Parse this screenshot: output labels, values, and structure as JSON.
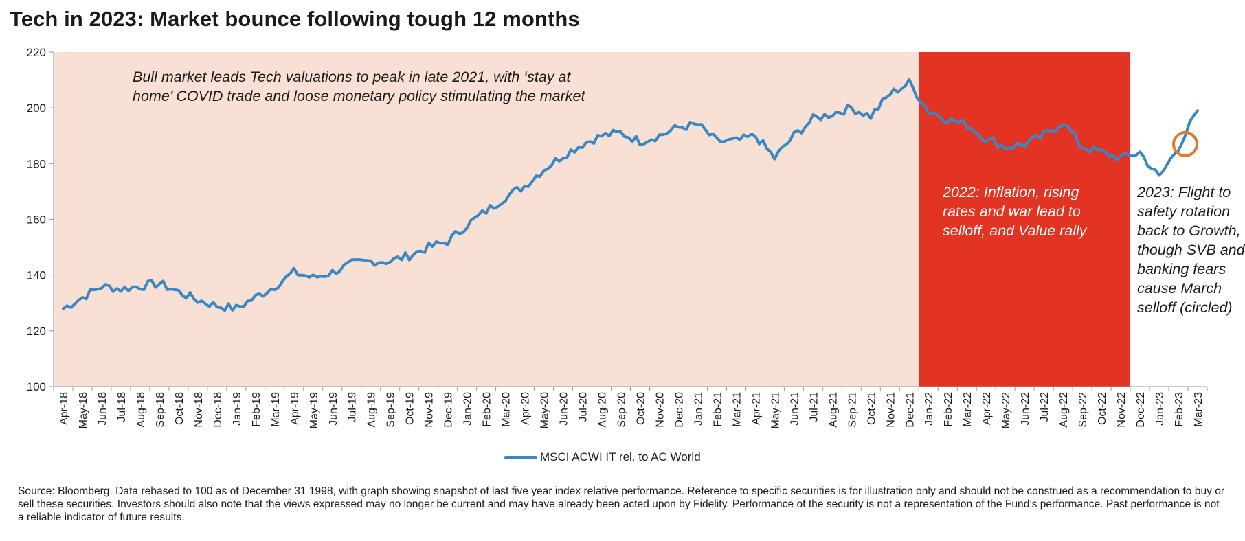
{
  "title": "Tech in 2023: Market bounce following tough 12 months",
  "colors": {
    "line": "#3a87c3",
    "bull_region": "#f8e1d4",
    "selloff_region": "#e33322",
    "circle": "#e07a2f"
  },
  "annotations": {
    "bull": "Bull market leads Tech valuations to peak in late 2021, with ‘stay at home’ COVID trade and loose monetary policy stimulating the market",
    "y2022": "2022: Inflation, rising rates and war lead to selloff, and Value rally",
    "y2023": "2023: Flight to safety rotation back to Growth, though SVB and banking fears cause March selloff (circled)"
  },
  "source_note": "Source: Bloomberg. Data rebased to 100 as of December 31 1998, with graph showing snapshot of last five year index relative performance. Reference to specific securities is for illustration only and should not be construed as a recommendation to buy or sell these securities. Investors should also note that the views expressed may no longer be current and may have already been acted upon by Fidelity. Performance of the security is not a representation of the Fund’s performance. Past performance is not a reliable indicator of future results.",
  "chart_data": {
    "type": "line",
    "title": "Tech in 2023: Market bounce following tough 12 months",
    "xlabel": "",
    "ylabel": "",
    "ylim": [
      100,
      220
    ],
    "yticks": [
      100,
      120,
      140,
      160,
      180,
      200,
      220
    ],
    "grid": false,
    "legend_position": "bottom-center",
    "x_tick_labels": [
      "Apr-18",
      "May-18",
      "Jun-18",
      "Jul-18",
      "Aug-18",
      "Sep-18",
      "Oct-18",
      "Nov-18",
      "Dec-18",
      "Jan-19",
      "Feb-19",
      "Mar-19",
      "Apr-19",
      "May-19",
      "Jun-19",
      "Jul-19",
      "Aug-19",
      "Sep-19",
      "Oct-19",
      "Nov-19",
      "Dec-19",
      "Jan-20",
      "Feb-20",
      "Mar-20",
      "Apr-20",
      "May-20",
      "Jun-20",
      "Jul-20",
      "Aug-20",
      "Sep-20",
      "Oct-20",
      "Nov-20",
      "Dec-20",
      "Jan-21",
      "Feb-21",
      "Mar-21",
      "Apr-21",
      "May-21",
      "Jun-21",
      "Jul-21",
      "Aug-21",
      "Sep-21",
      "Oct-21",
      "Nov-21",
      "Dec-21",
      "Jan-22",
      "Feb-22",
      "Mar-22",
      "Apr-22",
      "May-22",
      "Jun-22",
      "Jul-22",
      "Aug-22",
      "Sep-22",
      "Oct-22",
      "Nov-22",
      "Dec-22",
      "Jan-23",
      "Feb-23",
      "Mar-23"
    ],
    "shaded_regions": [
      {
        "from": "Apr-18",
        "to": "Jan-22",
        "color": "#f8e1d4"
      },
      {
        "from": "Jan-22",
        "to": "Dec-22",
        "color": "#e33322"
      }
    ],
    "highlight_circle": {
      "x": "Feb-23",
      "y": 187
    },
    "series": [
      {
        "name": "MSCI ACWI IT rel. to AC World",
        "x": [
          "Apr-18",
          "May-18",
          "Jun-18",
          "Jul-18",
          "Aug-18",
          "Sep-18",
          "Oct-18",
          "Nov-18",
          "Dec-18",
          "Jan-19",
          "Feb-19",
          "Mar-19",
          "Apr-19",
          "May-19",
          "Jun-19",
          "Jul-19",
          "Aug-19",
          "Sep-19",
          "Oct-19",
          "Nov-19",
          "Dec-19",
          "Jan-20",
          "Feb-20",
          "Mar-20",
          "Apr-20",
          "May-20",
          "Jun-20",
          "Jul-20",
          "Aug-20",
          "Sep-20",
          "Oct-20",
          "Nov-20",
          "Dec-20",
          "Jan-21",
          "Feb-21",
          "Mar-21",
          "Apr-21",
          "May-21",
          "Jun-21",
          "Jul-21",
          "Aug-21",
          "Sep-21",
          "Oct-21",
          "Nov-21",
          "Dec-21",
          "Jan-22",
          "Feb-22",
          "Mar-22",
          "Apr-22",
          "May-22",
          "Jun-22",
          "Jul-22",
          "Aug-22",
          "Sep-22",
          "Oct-22",
          "Nov-22",
          "Dec-22",
          "Jan-23",
          "Feb-23",
          "Mar-23"
        ],
        "values": [
          128,
          132,
          136,
          135,
          136,
          137,
          134,
          131,
          129,
          128,
          132,
          136,
          141,
          139,
          141,
          144,
          145,
          145,
          147,
          150,
          152,
          158,
          163,
          168,
          172,
          178,
          183,
          187,
          190,
          191,
          188,
          190,
          193,
          194,
          188,
          188,
          190,
          182,
          190,
          196,
          198,
          200,
          197,
          205,
          209,
          199,
          196,
          194,
          189,
          186,
          187,
          190,
          195,
          186,
          184,
          182,
          184,
          175,
          186,
          199
        ]
      }
    ]
  }
}
